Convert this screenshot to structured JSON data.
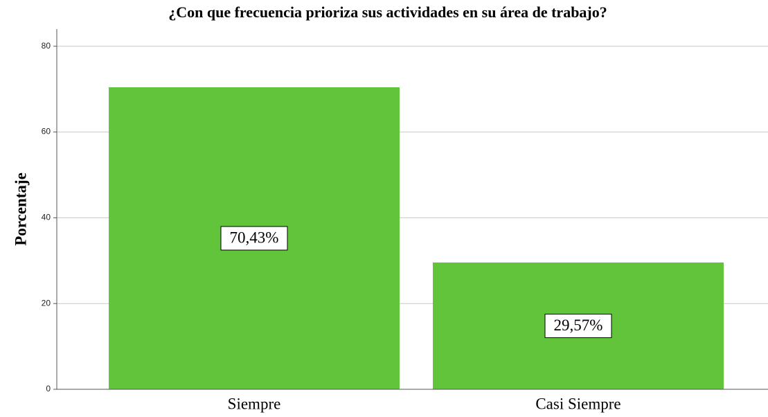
{
  "chart_data": {
    "type": "bar",
    "title": "¿Con que frecuencia prioriza sus actividades en su área de trabajo?",
    "y_label": "Porcentaje",
    "categories": [
      "Siempre",
      "Casi Siempre"
    ],
    "values": [
      70.43,
      29.57
    ],
    "value_labels": [
      "70,43%",
      "29,57%"
    ],
    "color": "#62c43a",
    "ylim": [
      0,
      84
    ],
    "yticks": [
      0,
      20,
      40,
      60,
      80
    ],
    "grid": true
  }
}
